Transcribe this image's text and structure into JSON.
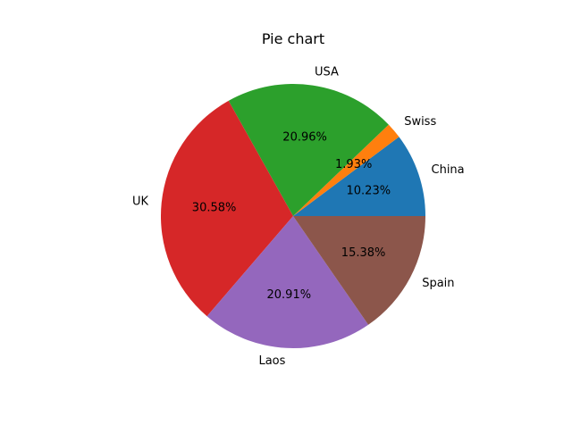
{
  "chart_data": {
    "type": "pie",
    "title": "Pie chart",
    "categories": [
      "China",
      "Swiss",
      "USA",
      "UK",
      "Laos",
      "Spain"
    ],
    "values": [
      10.23,
      1.93,
      20.96,
      30.58,
      20.91,
      15.38
    ],
    "value_labels": [
      "10.23%",
      "1.93%",
      "20.96%",
      "30.58%",
      "20.91%",
      "15.38%"
    ],
    "colors": [
      "#1f77b4",
      "#ff7f0e",
      "#2ca02c",
      "#d62728",
      "#9467bd",
      "#8c564b"
    ],
    "start_angle_deg": 0,
    "direction": "counterclockwise",
    "legend": "none"
  }
}
